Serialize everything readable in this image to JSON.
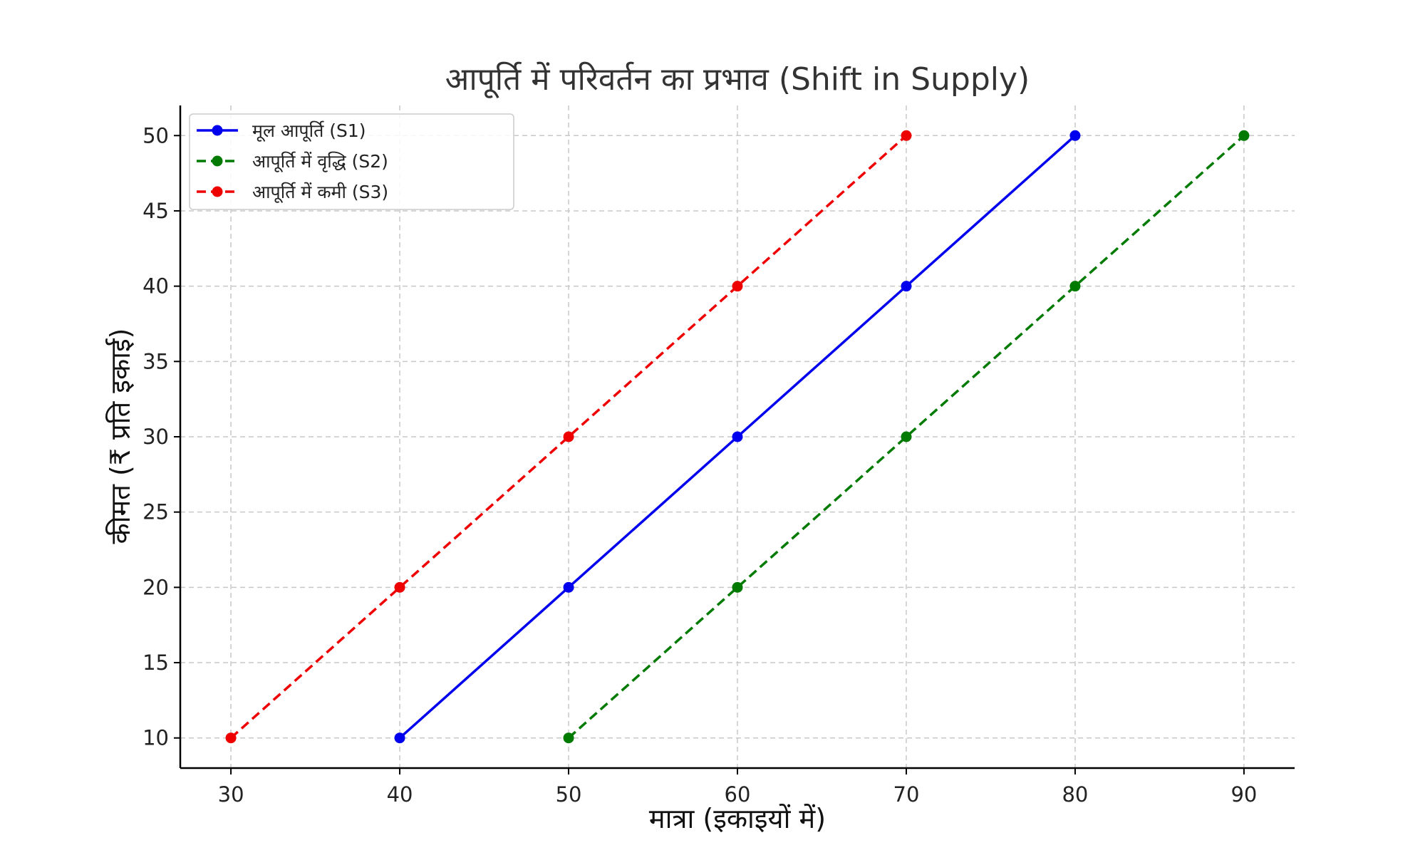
{
  "chart_data": {
    "type": "line",
    "title": "आपूर्ति में परिवर्तन का प्रभाव (Shift in Supply)",
    "xlabel": "मात्रा (इकाइयों में)",
    "ylabel": "कीमत (₹ प्रति इकाई)",
    "xlim": [
      27,
      93
    ],
    "ylim": [
      8,
      52
    ],
    "xticks": [
      30,
      40,
      50,
      60,
      70,
      80,
      90
    ],
    "yticks": [
      10,
      15,
      20,
      25,
      30,
      35,
      40,
      45,
      50
    ],
    "grid": true,
    "legend_position": "top-left",
    "series": [
      {
        "name": "मूल आपूर्ति (S1)",
        "x": [
          40,
          50,
          60,
          70,
          80
        ],
        "y": [
          10,
          20,
          30,
          40,
          50
        ],
        "color": "#0000ee",
        "linestyle": "solid",
        "marker": "circle"
      },
      {
        "name": "आपूर्ति में वृद्धि (S2)",
        "x": [
          50,
          60,
          70,
          80,
          90
        ],
        "y": [
          10,
          20,
          30,
          40,
          50
        ],
        "color": "#007a00",
        "linestyle": "dashed",
        "marker": "circle"
      },
      {
        "name": "आपूर्ति में कमी (S3)",
        "x": [
          30,
          40,
          50,
          60,
          70
        ],
        "y": [
          10,
          20,
          30,
          40,
          50
        ],
        "color": "#ee0000",
        "linestyle": "dashed",
        "marker": "circle"
      }
    ]
  }
}
